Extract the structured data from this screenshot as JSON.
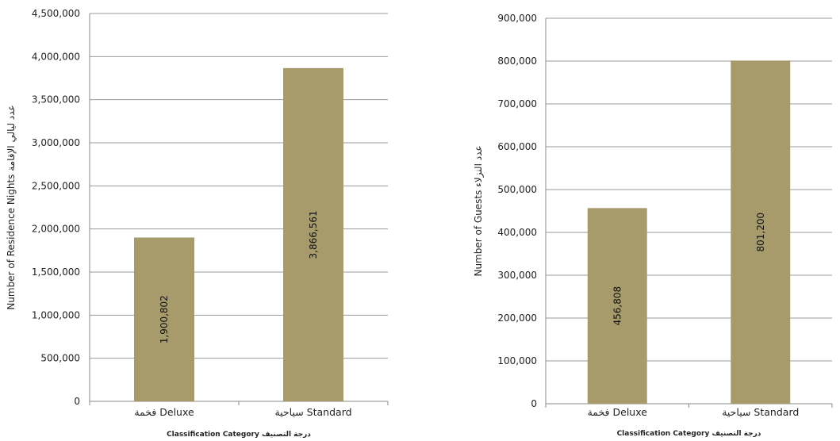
{
  "colors": {
    "bar": "#a79b6b",
    "grid": "#9a9a9a",
    "axis": "#8a8a8a",
    "text": "#222222"
  },
  "chart_data": [
    {
      "type": "bar",
      "categories": [
        "فخمة  Deluxe",
        "سياحية  Standard"
      ],
      "values": [
        1900802,
        3866561
      ],
      "value_labels": [
        "1,900,802",
        "3,866,561"
      ],
      "ylim": [
        0,
        4500000
      ],
      "yticks": [
        0,
        500000,
        1000000,
        1500000,
        2000000,
        2500000,
        3000000,
        3500000,
        4000000,
        4500000
      ],
      "ytick_labels": [
        "0",
        "500,000",
        "1,000,000",
        "1,500,000",
        "2,000,000",
        "2,500,000",
        "3,000,000",
        "3,500,000",
        "4,000,000",
        "4,500,000"
      ],
      "ylabel": "Number of Residence Nights  عدد ليالي الإقامة",
      "xlabel": "Classification Category  درجة التصنيف",
      "grid": true,
      "legend": "none"
    },
    {
      "type": "bar",
      "categories": [
        "فخمة  Deluxe",
        "سياحية  Standard"
      ],
      "values": [
        456808,
        801200
      ],
      "value_labels": [
        "456,808",
        "801,200"
      ],
      "ylim": [
        0,
        900000
      ],
      "yticks": [
        0,
        100000,
        200000,
        300000,
        400000,
        500000,
        600000,
        700000,
        800000,
        900000
      ],
      "ytick_labels": [
        "0",
        "100,000",
        "200,000",
        "300,000",
        "400,000",
        "500,000",
        "600,000",
        "700,000",
        "800,000",
        "900,000"
      ],
      "ylabel": "Number of Guests  عدد النزلاء",
      "xlabel": "Classification Category  درجة التصنيف",
      "grid": true,
      "legend": "none"
    }
  ]
}
